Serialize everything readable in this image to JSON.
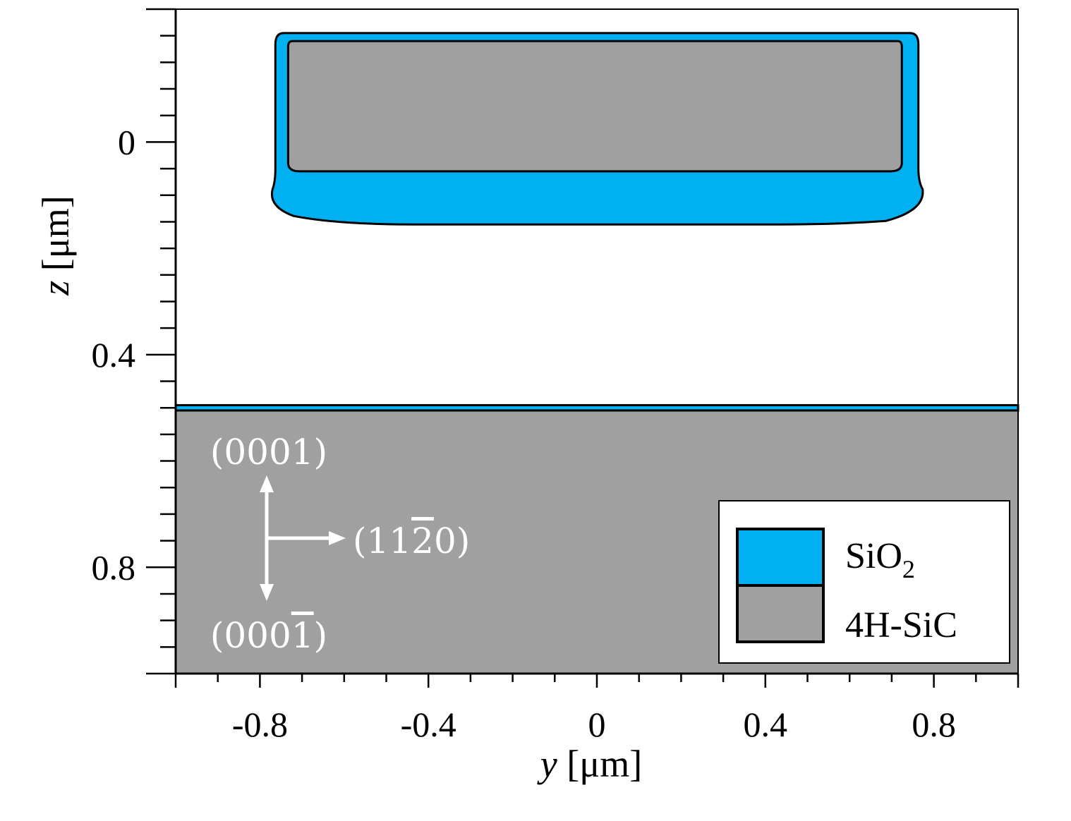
{
  "chart_data": {
    "type": "area",
    "xlabel_var": "y",
    "xlabel_unit": "[μm]",
    "ylabel_var": "z",
    "ylabel_unit": "[μm]",
    "xlim": [
      -1.0,
      1.0
    ],
    "ylim": [
      1.0,
      -0.25
    ],
    "y_inverted": true,
    "x_major_ticks": [
      -0.8,
      -0.4,
      0,
      0.4,
      0.8
    ],
    "x_tick_labels": [
      "-0.8",
      "-0.4",
      "0",
      "0.4",
      "0.8"
    ],
    "x_minor_step": 0.1,
    "y_major_ticks": [
      0,
      0.4,
      0.8
    ],
    "y_tick_labels": [
      "0",
      "0.4",
      "0.8"
    ],
    "y_minor_step": 0.05,
    "regions": [
      {
        "material": "SiO2",
        "name": "sio2-shell",
        "y_range": [
          -0.77,
          0.77
        ],
        "z_range": [
          -0.205,
          0.155
        ]
      },
      {
        "material": "4H-SiC",
        "name": "sic-core",
        "y_range": [
          -0.733,
          0.724
        ],
        "z_range": [
          -0.19,
          0.055
        ]
      },
      {
        "material": "SiO2",
        "name": "sio2-surface-film",
        "y_range": [
          -1.0,
          1.0
        ],
        "z_range": [
          0.495,
          0.505
        ]
      },
      {
        "material": "4H-SiC",
        "name": "sic-substrate",
        "y_range": [
          -1.0,
          1.0
        ],
        "z_range": [
          0.505,
          1.0
        ]
      }
    ],
    "legend": {
      "placement": "bottom-right",
      "entries": [
        {
          "label": "SiO",
          "sub": "2",
          "color": "#00b0f0"
        },
        {
          "label": "4H-SiC",
          "sub": "",
          "color": "#a0a0a0"
        }
      ]
    },
    "annotations": {
      "up": "(0001)",
      "down_prefix": "(000",
      "down_bar": "1",
      "down_suffix": ")",
      "right_prefix": "(11",
      "right_bar": "2",
      "right_suffix": "0)"
    }
  }
}
